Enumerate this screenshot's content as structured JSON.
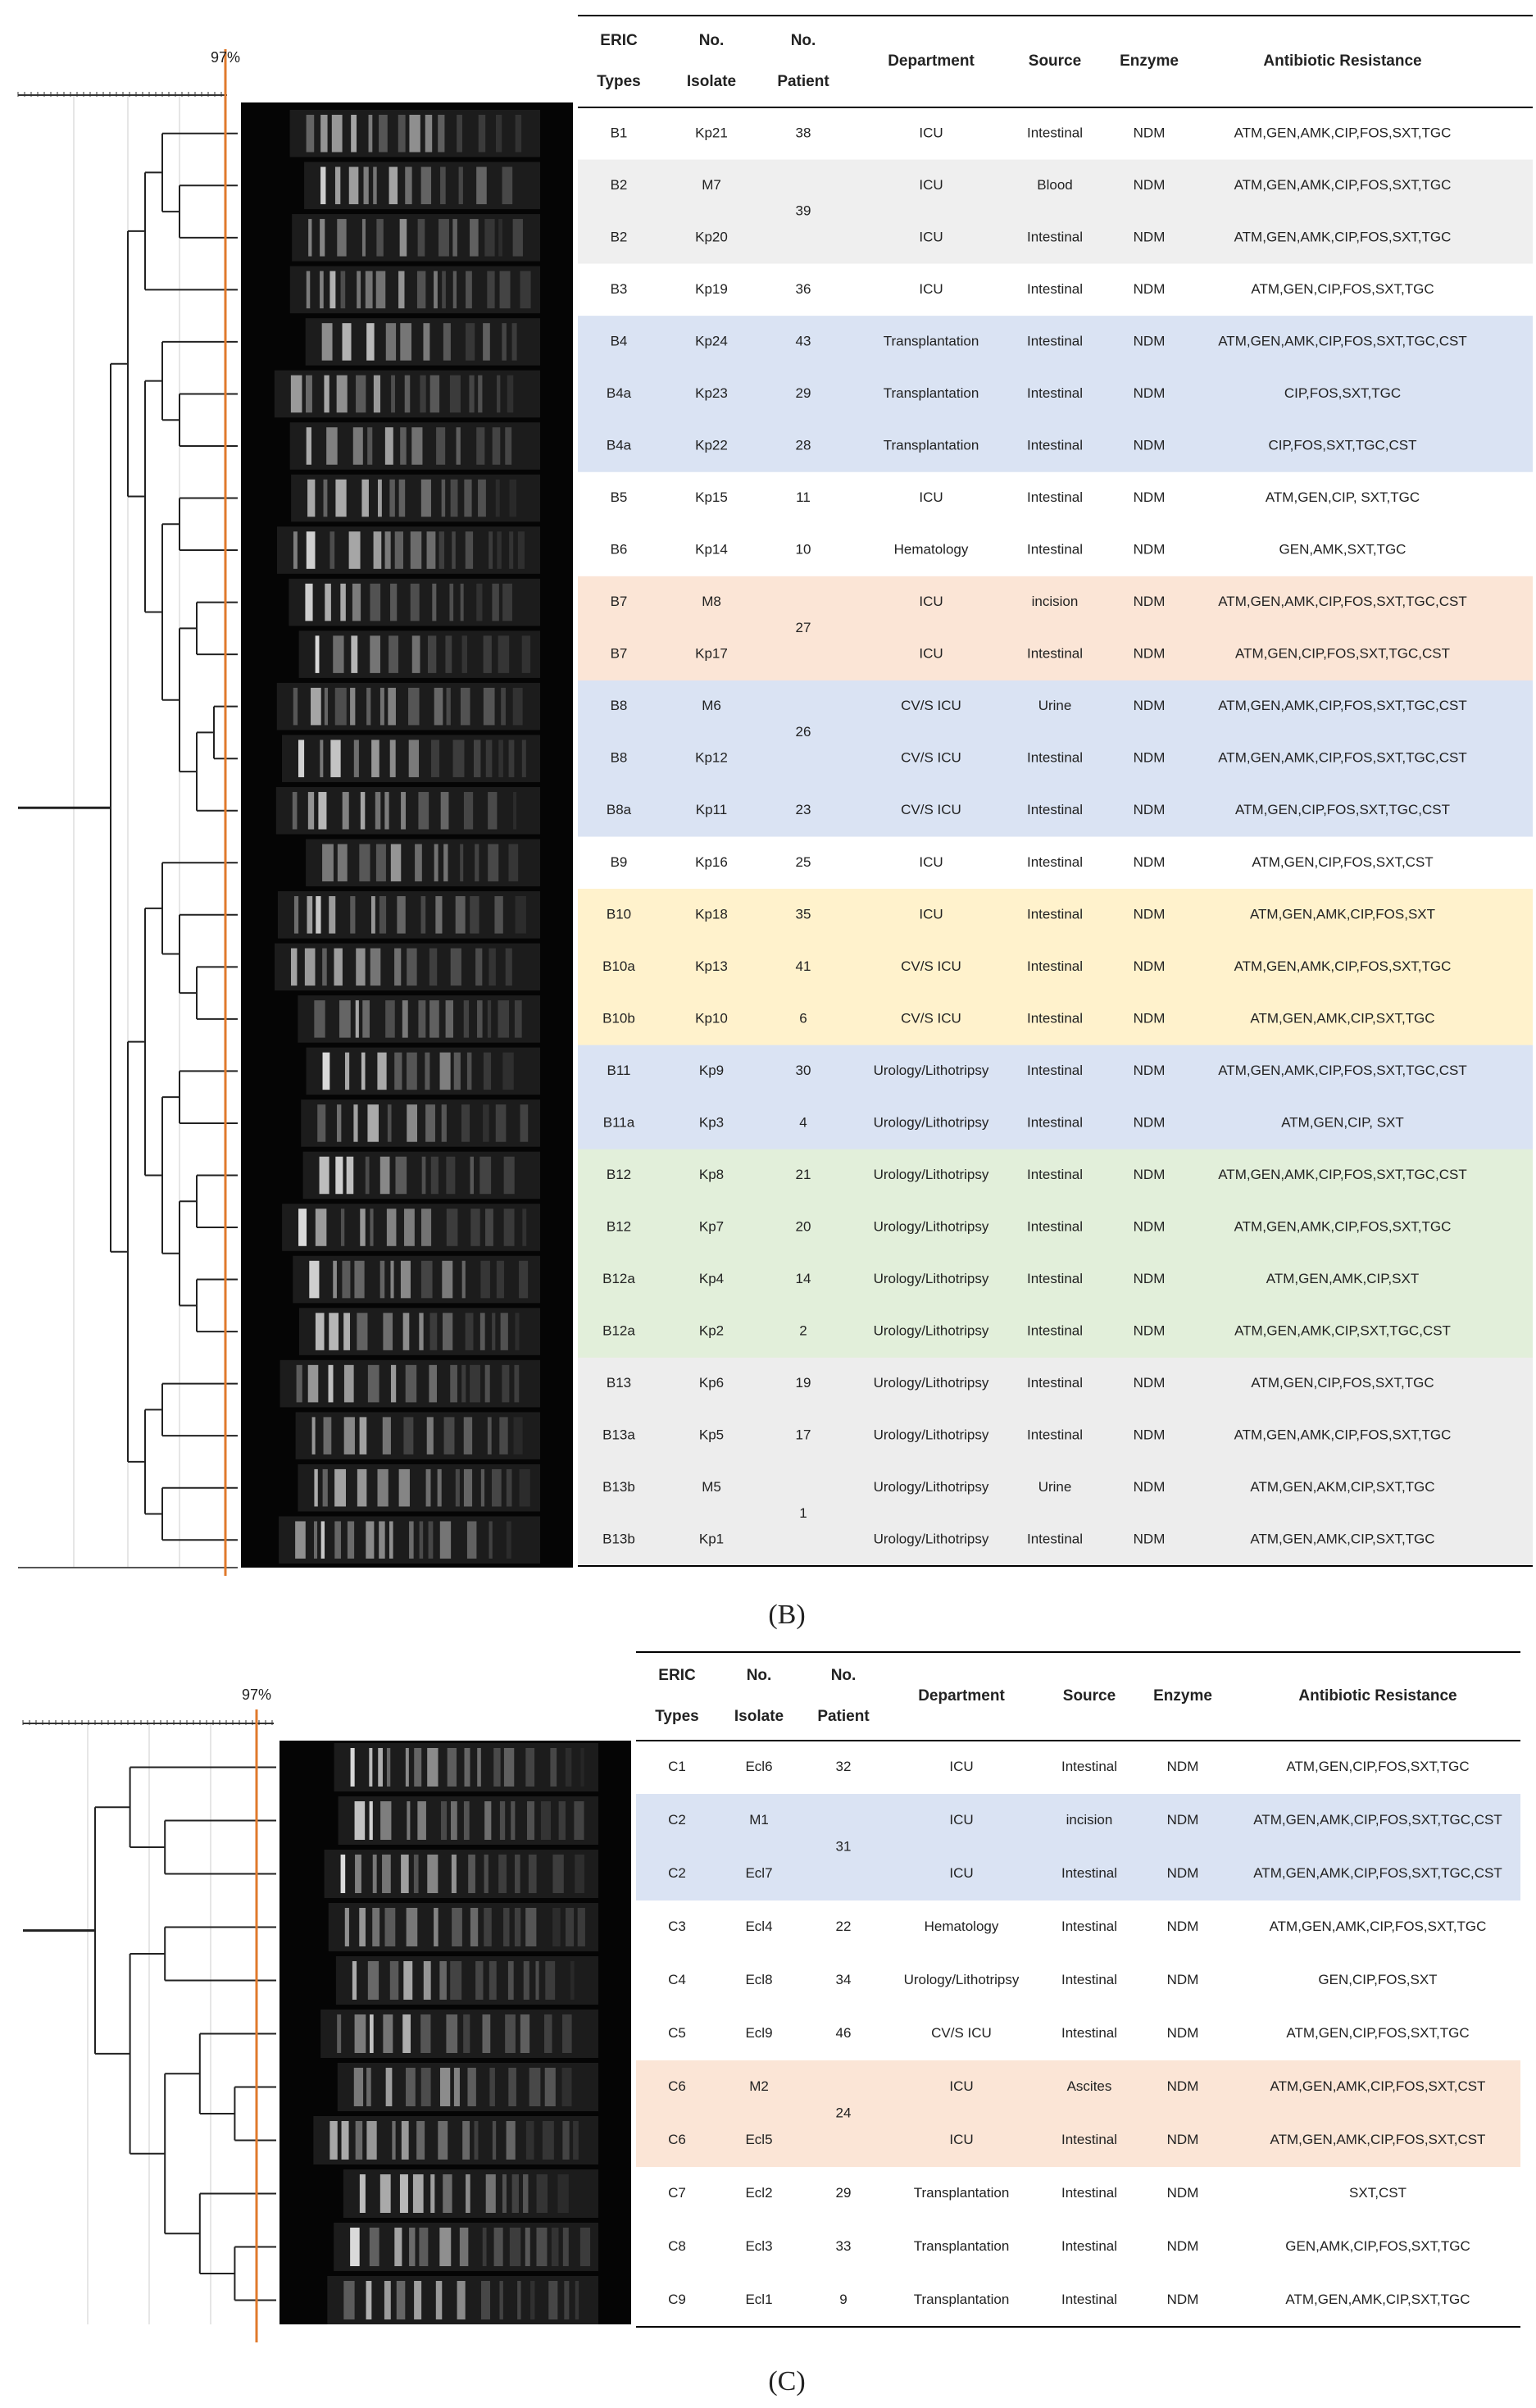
{
  "panels": [
    {
      "label": "(B)",
      "cutoff": "97%",
      "table": {
        "header": [
          [
            "ERIC",
            "Types"
          ],
          [
            "No.",
            "Isolate"
          ],
          [
            "No.",
            "Patient"
          ],
          [
            "Department"
          ],
          [
            "Source"
          ],
          [
            "Enzyme"
          ],
          [
            "Antibiotic Resistance"
          ]
        ],
        "rows": [
          [
            "B1",
            "Kp21",
            "38",
            "ICU",
            "Intestinal",
            "NDM",
            "ATM,GEN,AMK,CIP,FOS,SXT,TGC"
          ],
          [
            "B2",
            "M7",
            "39",
            "ICU",
            "Blood",
            "NDM",
            "ATM,GEN,AMK,CIP,FOS,SXT,TGC"
          ],
          [
            "B2",
            "Kp20",
            null,
            "ICU",
            "Intestinal",
            "NDM",
            "ATM,GEN,AMK,CIP,FOS,SXT,TGC"
          ],
          [
            "B3",
            "Kp19",
            "36",
            "ICU",
            "Intestinal",
            "NDM",
            "ATM,GEN,CIP,FOS,SXT,TGC"
          ],
          [
            "B4",
            "Kp24",
            "43",
            "Transplantation",
            "Intestinal",
            "NDM",
            "ATM,GEN,AMK,CIP,FOS,SXT,TGC,CST"
          ],
          [
            "B4a",
            "Kp23",
            "29",
            "Transplantation",
            "Intestinal",
            "NDM",
            "CIP,FOS,SXT,TGC"
          ],
          [
            "B4a",
            "Kp22",
            "28",
            "Transplantation",
            "Intestinal",
            "NDM",
            "CIP,FOS,SXT,TGC,CST"
          ],
          [
            "B5",
            "Kp15",
            "11",
            "ICU",
            "Intestinal",
            "NDM",
            "ATM,GEN,CIP, SXT,TGC"
          ],
          [
            "B6",
            "Kp14",
            "10",
            "Hematology",
            "Intestinal",
            "NDM",
            "GEN,AMK,SXT,TGC"
          ],
          [
            "B7",
            "M8",
            "27",
            "ICU",
            "incision",
            "NDM",
            "ATM,GEN,AMK,CIP,FOS,SXT,TGC,CST"
          ],
          [
            "B7",
            "Kp17",
            null,
            "ICU",
            "Intestinal",
            "NDM",
            "ATM,GEN,CIP,FOS,SXT,TGC,CST"
          ],
          [
            "B8",
            "M6",
            "26",
            "CV/S ICU",
            "Urine",
            "NDM",
            "ATM,GEN,AMK,CIP,FOS,SXT,TGC,CST"
          ],
          [
            "B8",
            "Kp12",
            null,
            "CV/S ICU",
            "Intestinal",
            "NDM",
            "ATM,GEN,AMK,CIP,FOS,SXT,TGC,CST"
          ],
          [
            "B8a",
            "Kp11",
            "23",
            "CV/S ICU",
            "Intestinal",
            "NDM",
            "ATM,GEN,CIP,FOS,SXT,TGC,CST"
          ],
          [
            "B9",
            "Kp16",
            "25",
            "ICU",
            "Intestinal",
            "NDM",
            "ATM,GEN,CIP,FOS,SXT,CST"
          ],
          [
            "B10",
            "Kp18",
            "35",
            "ICU",
            "Intestinal",
            "NDM",
            "ATM,GEN,AMK,CIP,FOS,SXT"
          ],
          [
            "B10a",
            "Kp13",
            "41",
            "CV/S ICU",
            "Intestinal",
            "NDM",
            "ATM,GEN,AMK,CIP,FOS,SXT,TGC"
          ],
          [
            "B10b",
            "Kp10",
            "6",
            "CV/S ICU",
            "Intestinal",
            "NDM",
            "ATM,GEN,AMK,CIP,SXT,TGC"
          ],
          [
            "B11",
            "Kp9",
            "30",
            "Urology/Lithotripsy",
            "Intestinal",
            "NDM",
            "ATM,GEN,AMK,CIP,FOS,SXT,TGC,CST"
          ],
          [
            "B11a",
            "Kp3",
            "4",
            "Urology/Lithotripsy",
            "Intestinal",
            "NDM",
            "ATM,GEN,CIP, SXT"
          ],
          [
            "B12",
            "Kp8",
            "21",
            "Urology/Lithotripsy",
            "Intestinal",
            "NDM",
            "ATM,GEN,AMK,CIP,FOS,SXT,TGC,CST"
          ],
          [
            "B12",
            "Kp7",
            "20",
            "Urology/Lithotripsy",
            "Intestinal",
            "NDM",
            "ATM,GEN,AMK,CIP,FOS,SXT,TGC"
          ],
          [
            "B12a",
            "Kp4",
            "14",
            "Urology/Lithotripsy",
            "Intestinal",
            "NDM",
            "ATM,GEN,AMK,CIP,SXT"
          ],
          [
            "B12a",
            "Kp2",
            "2",
            "Urology/Lithotripsy",
            "Intestinal",
            "NDM",
            "ATM,GEN,AMK,CIP,SXT,TGC,CST"
          ],
          [
            "B13",
            "Kp6",
            "19",
            "Urology/Lithotripsy",
            "Intestinal",
            "NDM",
            "ATM,GEN,CIP,FOS,SXT,TGC"
          ],
          [
            "B13a",
            "Kp5",
            "17",
            "Urology/Lithotripsy",
            "Intestinal",
            "NDM",
            "ATM,GEN,AMK,CIP,FOS,SXT,TGC"
          ],
          [
            "B13b",
            "M5",
            "1",
            "Urology/Lithotripsy",
            "Urine",
            "NDM",
            "ATM,GEN,AKM,CIP,SXT,TGC"
          ],
          [
            "B13b",
            "Kp1",
            null,
            "Urology/Lithotripsy",
            "Intestinal",
            "NDM",
            "ATM,GEN,AMK,CIP,SXT,TGC"
          ]
        ],
        "row_colors": [
          "#ffffff",
          "#efefef",
          "#efefef",
          "#ffffff",
          "#dae3f3",
          "#dae3f3",
          "#dae3f3",
          "#ffffff",
          "#ffffff",
          "#fbe5d6",
          "#fbe5d6",
          "#dae3f3",
          "#dae3f3",
          "#dae3f3",
          "#ffffff",
          "#fff2cc",
          "#fff2cc",
          "#fff2cc",
          "#dae3f3",
          "#dae3f3",
          "#e2efda",
          "#e2efda",
          "#e2efda",
          "#e2efda",
          "#ededed",
          "#ededed",
          "#ededed",
          "#ededed"
        ]
      }
    },
    {
      "label": "(C)",
      "cutoff": "97%",
      "table": {
        "header": [
          [
            "ERIC",
            "Types"
          ],
          [
            "No.",
            "Isolate"
          ],
          [
            "No.",
            "Patient"
          ],
          [
            "Department"
          ],
          [
            "Source"
          ],
          [
            "Enzyme"
          ],
          [
            "Antibiotic Resistance"
          ]
        ],
        "rows": [
          [
            "C1",
            "Ecl6",
            "32",
            "ICU",
            "Intestinal",
            "NDM",
            "ATM,GEN,CIP,FOS,SXT,TGC"
          ],
          [
            "C2",
            "M1",
            "31",
            "ICU",
            "incision",
            "NDM",
            "ATM,GEN,AMK,CIP,FOS,SXT,TGC,CST"
          ],
          [
            "C2",
            "Ecl7",
            null,
            "ICU",
            "Intestinal",
            "NDM",
            "ATM,GEN,AMK,CIP,FOS,SXT,TGC,CST"
          ],
          [
            "C3",
            "Ecl4",
            "22",
            "Hematology",
            "Intestinal",
            "NDM",
            "ATM,GEN,AMK,CIP,FOS,SXT,TGC"
          ],
          [
            "C4",
            "Ecl8",
            "34",
            "Urology/Lithotripsy",
            "Intestinal",
            "NDM",
            "GEN,CIP,FOS,SXT"
          ],
          [
            "C5",
            "Ecl9",
            "46",
            "CV/S ICU",
            "Intestinal",
            "NDM",
            "ATM,GEN,CIP,FOS,SXT,TGC"
          ],
          [
            "C6",
            "M2",
            "24",
            "ICU",
            "Ascites",
            "NDM",
            "ATM,GEN,AMK,CIP,FOS,SXT,CST"
          ],
          [
            "C6",
            "Ecl5",
            null,
            "ICU",
            "Intestinal",
            "NDM",
            "ATM,GEN,AMK,CIP,FOS,SXT,CST"
          ],
          [
            "C7",
            "Ecl2",
            "29",
            "Transplantation",
            "Intestinal",
            "NDM",
            "SXT,CST"
          ],
          [
            "C8",
            "Ecl3",
            "33",
            "Transplantation",
            "Intestinal",
            "NDM",
            "GEN,AMK,CIP,FOS,SXT,TGC"
          ],
          [
            "C9",
            "Ecl1",
            "9",
            "Transplantation",
            "Intestinal",
            "NDM",
            "ATM,GEN,AMK,CIP,SXT,TGC"
          ]
        ],
        "row_colors": [
          "#ffffff",
          "#dae3f3",
          "#dae3f3",
          "#ffffff",
          "#ffffff",
          "#ffffff",
          "#fbe5d6",
          "#fbe5d6",
          "#ffffff",
          "#ffffff",
          "#ffffff"
        ]
      }
    }
  ]
}
